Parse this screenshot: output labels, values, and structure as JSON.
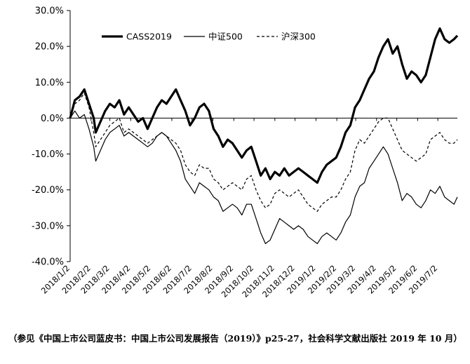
{
  "chart_data": {
    "type": "line",
    "ylim": [
      -0.4,
      0.3
    ],
    "yticks": [
      0.3,
      0.2,
      0.1,
      0.0,
      -0.1,
      -0.2,
      -0.3,
      -0.4
    ],
    "ytick_labels": [
      "30.0%",
      "20.0%",
      "10.0%",
      "0.0%",
      "-10.0%",
      "-20.0%",
      "-30.0%",
      "-40.0%"
    ],
    "x_start": "2018-01-02",
    "x_end": "2019-07-31",
    "xticks": [
      "2018-01-02",
      "2018-02-02",
      "2018-03-02",
      "2018-04-02",
      "2018-05-02",
      "2018-06-02",
      "2018-07-02",
      "2018-08-02",
      "2018-09-02",
      "2018-10-02",
      "2018-11-02",
      "2018-12-02",
      "2019-01-02",
      "2019-02-02",
      "2019-03-02",
      "2019-04-02",
      "2019-05-02",
      "2019-06-02",
      "2019-07-02"
    ],
    "xtick_labels": [
      "2018/1/2",
      "2018/2/2",
      "2018/3/2",
      "2018/4/2",
      "2018/5/2",
      "2018/6/2",
      "2018/7/2",
      "2018/8/2",
      "2018/9/2",
      "2018/10/2",
      "2018/11/2",
      "2018/12/2",
      "2019/1/2",
      "2019/2/2",
      "2019/3/2",
      "2019/4/2",
      "2019/5/2",
      "2019/6/2",
      "2019/7/2"
    ],
    "legend_position": "top",
    "grid": false,
    "series": [
      {
        "name": "CASS2019",
        "style": "thick-solid",
        "points": [
          [
            "2018-01-02",
            0.0
          ],
          [
            "2018-01-09",
            0.05
          ],
          [
            "2018-01-16",
            0.06
          ],
          [
            "2018-01-23",
            0.08
          ],
          [
            "2018-01-30",
            0.04
          ],
          [
            "2018-02-06",
            0.0
          ],
          [
            "2018-02-09",
            -0.04
          ],
          [
            "2018-02-16",
            -0.01
          ],
          [
            "2018-02-23",
            0.02
          ],
          [
            "2018-03-02",
            0.04
          ],
          [
            "2018-03-09",
            0.03
          ],
          [
            "2018-03-16",
            0.05
          ],
          [
            "2018-03-23",
            0.01
          ],
          [
            "2018-03-30",
            0.03
          ],
          [
            "2018-04-06",
            0.01
          ],
          [
            "2018-04-13",
            -0.01
          ],
          [
            "2018-04-20",
            0.0
          ],
          [
            "2018-04-27",
            -0.03
          ],
          [
            "2018-05-04",
            0.0
          ],
          [
            "2018-05-11",
            0.03
          ],
          [
            "2018-05-18",
            0.05
          ],
          [
            "2018-05-25",
            0.04
          ],
          [
            "2018-06-01",
            0.06
          ],
          [
            "2018-06-08",
            0.08
          ],
          [
            "2018-06-15",
            0.05
          ],
          [
            "2018-06-22",
            0.02
          ],
          [
            "2018-06-29",
            -0.02
          ],
          [
            "2018-07-06",
            0.0
          ],
          [
            "2018-07-13",
            0.03
          ],
          [
            "2018-07-20",
            0.04
          ],
          [
            "2018-07-27",
            0.02
          ],
          [
            "2018-08-03",
            -0.03
          ],
          [
            "2018-08-10",
            -0.05
          ],
          [
            "2018-08-17",
            -0.08
          ],
          [
            "2018-08-24",
            -0.06
          ],
          [
            "2018-08-31",
            -0.07
          ],
          [
            "2018-09-07",
            -0.09
          ],
          [
            "2018-09-14",
            -0.11
          ],
          [
            "2018-09-21",
            -0.09
          ],
          [
            "2018-09-28",
            -0.08
          ],
          [
            "2018-10-05",
            -0.12
          ],
          [
            "2018-10-12",
            -0.16
          ],
          [
            "2018-10-19",
            -0.14
          ],
          [
            "2018-10-26",
            -0.17
          ],
          [
            "2018-11-02",
            -0.15
          ],
          [
            "2018-11-09",
            -0.16
          ],
          [
            "2018-11-16",
            -0.14
          ],
          [
            "2018-11-23",
            -0.16
          ],
          [
            "2018-11-30",
            -0.15
          ],
          [
            "2018-12-07",
            -0.14
          ],
          [
            "2018-12-14",
            -0.15
          ],
          [
            "2018-12-21",
            -0.16
          ],
          [
            "2018-12-28",
            -0.17
          ],
          [
            "2019-01-04",
            -0.18
          ],
          [
            "2019-01-11",
            -0.15
          ],
          [
            "2019-01-18",
            -0.13
          ],
          [
            "2019-01-25",
            -0.12
          ],
          [
            "2019-02-01",
            -0.11
          ],
          [
            "2019-02-08",
            -0.08
          ],
          [
            "2019-02-15",
            -0.04
          ],
          [
            "2019-02-22",
            -0.02
          ],
          [
            "2019-03-01",
            0.03
          ],
          [
            "2019-03-08",
            0.05
          ],
          [
            "2019-03-15",
            0.08
          ],
          [
            "2019-03-22",
            0.11
          ],
          [
            "2019-03-29",
            0.13
          ],
          [
            "2019-04-05",
            0.17
          ],
          [
            "2019-04-12",
            0.2
          ],
          [
            "2019-04-19",
            0.22
          ],
          [
            "2019-04-26",
            0.18
          ],
          [
            "2019-05-03",
            0.2
          ],
          [
            "2019-05-10",
            0.15
          ],
          [
            "2019-05-17",
            0.11
          ],
          [
            "2019-05-24",
            0.13
          ],
          [
            "2019-05-31",
            0.12
          ],
          [
            "2019-06-07",
            0.1
          ],
          [
            "2019-06-14",
            0.12
          ],
          [
            "2019-06-21",
            0.17
          ],
          [
            "2019-06-28",
            0.22
          ],
          [
            "2019-07-05",
            0.25
          ],
          [
            "2019-07-12",
            0.22
          ],
          [
            "2019-07-19",
            0.21
          ],
          [
            "2019-07-26",
            0.22
          ],
          [
            "2019-07-31",
            0.23
          ]
        ]
      },
      {
        "name": "中证500",
        "style": "thin-solid",
        "points": [
          [
            "2018-01-02",
            0.0
          ],
          [
            "2018-01-09",
            0.02
          ],
          [
            "2018-01-16",
            0.0
          ],
          [
            "2018-01-23",
            0.01
          ],
          [
            "2018-01-30",
            -0.03
          ],
          [
            "2018-02-06",
            -0.08
          ],
          [
            "2018-02-09",
            -0.12
          ],
          [
            "2018-02-16",
            -0.09
          ],
          [
            "2018-02-23",
            -0.06
          ],
          [
            "2018-03-02",
            -0.04
          ],
          [
            "2018-03-09",
            -0.03
          ],
          [
            "2018-03-16",
            -0.02
          ],
          [
            "2018-03-23",
            -0.05
          ],
          [
            "2018-03-30",
            -0.04
          ],
          [
            "2018-04-06",
            -0.05
          ],
          [
            "2018-04-13",
            -0.06
          ],
          [
            "2018-04-20",
            -0.07
          ],
          [
            "2018-04-27",
            -0.08
          ],
          [
            "2018-05-04",
            -0.07
          ],
          [
            "2018-05-11",
            -0.05
          ],
          [
            "2018-05-18",
            -0.04
          ],
          [
            "2018-05-25",
            -0.05
          ],
          [
            "2018-06-01",
            -0.07
          ],
          [
            "2018-06-08",
            -0.09
          ],
          [
            "2018-06-15",
            -0.12
          ],
          [
            "2018-06-22",
            -0.17
          ],
          [
            "2018-06-29",
            -0.19
          ],
          [
            "2018-07-06",
            -0.21
          ],
          [
            "2018-07-13",
            -0.18
          ],
          [
            "2018-07-20",
            -0.19
          ],
          [
            "2018-07-27",
            -0.2
          ],
          [
            "2018-08-03",
            -0.22
          ],
          [
            "2018-08-10",
            -0.23
          ],
          [
            "2018-08-17",
            -0.26
          ],
          [
            "2018-08-24",
            -0.25
          ],
          [
            "2018-08-31",
            -0.24
          ],
          [
            "2018-09-07",
            -0.25
          ],
          [
            "2018-09-14",
            -0.27
          ],
          [
            "2018-09-21",
            -0.24
          ],
          [
            "2018-09-28",
            -0.24
          ],
          [
            "2018-10-05",
            -0.28
          ],
          [
            "2018-10-12",
            -0.32
          ],
          [
            "2018-10-19",
            -0.35
          ],
          [
            "2018-10-26",
            -0.34
          ],
          [
            "2018-11-02",
            -0.31
          ],
          [
            "2018-11-09",
            -0.28
          ],
          [
            "2018-11-16",
            -0.29
          ],
          [
            "2018-11-23",
            -0.3
          ],
          [
            "2018-11-30",
            -0.31
          ],
          [
            "2018-12-07",
            -0.3
          ],
          [
            "2018-12-14",
            -0.31
          ],
          [
            "2018-12-21",
            -0.33
          ],
          [
            "2018-12-28",
            -0.34
          ],
          [
            "2019-01-04",
            -0.35
          ],
          [
            "2019-01-11",
            -0.33
          ],
          [
            "2019-01-18",
            -0.32
          ],
          [
            "2019-01-25",
            -0.33
          ],
          [
            "2019-02-01",
            -0.34
          ],
          [
            "2019-02-08",
            -0.32
          ],
          [
            "2019-02-15",
            -0.29
          ],
          [
            "2019-02-22",
            -0.27
          ],
          [
            "2019-03-01",
            -0.22
          ],
          [
            "2019-03-08",
            -0.19
          ],
          [
            "2019-03-15",
            -0.18
          ],
          [
            "2019-03-22",
            -0.14
          ],
          [
            "2019-03-29",
            -0.12
          ],
          [
            "2019-04-05",
            -0.1
          ],
          [
            "2019-04-12",
            -0.08
          ],
          [
            "2019-04-19",
            -0.1
          ],
          [
            "2019-04-26",
            -0.14
          ],
          [
            "2019-05-03",
            -0.18
          ],
          [
            "2019-05-10",
            -0.23
          ],
          [
            "2019-05-17",
            -0.21
          ],
          [
            "2019-05-24",
            -0.22
          ],
          [
            "2019-05-31",
            -0.24
          ],
          [
            "2019-06-07",
            -0.25
          ],
          [
            "2019-06-14",
            -0.23
          ],
          [
            "2019-06-21",
            -0.2
          ],
          [
            "2019-06-28",
            -0.21
          ],
          [
            "2019-07-05",
            -0.19
          ],
          [
            "2019-07-12",
            -0.22
          ],
          [
            "2019-07-19",
            -0.23
          ],
          [
            "2019-07-26",
            -0.24
          ],
          [
            "2019-07-31",
            -0.22
          ]
        ]
      },
      {
        "name": "沪深300",
        "style": "dashed",
        "points": [
          [
            "2018-01-02",
            0.0
          ],
          [
            "2018-01-09",
            0.04
          ],
          [
            "2018-01-16",
            0.05
          ],
          [
            "2018-01-23",
            0.07
          ],
          [
            "2018-01-30",
            0.03
          ],
          [
            "2018-02-06",
            -0.04
          ],
          [
            "2018-02-09",
            -0.08
          ],
          [
            "2018-02-16",
            -0.06
          ],
          [
            "2018-02-23",
            -0.04
          ],
          [
            "2018-03-02",
            -0.02
          ],
          [
            "2018-03-09",
            -0.01
          ],
          [
            "2018-03-16",
            0.0
          ],
          [
            "2018-03-23",
            -0.04
          ],
          [
            "2018-03-30",
            -0.03
          ],
          [
            "2018-04-06",
            -0.04
          ],
          [
            "2018-04-13",
            -0.05
          ],
          [
            "2018-04-20",
            -0.06
          ],
          [
            "2018-04-27",
            -0.07
          ],
          [
            "2018-05-04",
            -0.06
          ],
          [
            "2018-05-11",
            -0.05
          ],
          [
            "2018-05-18",
            -0.04
          ],
          [
            "2018-05-25",
            -0.05
          ],
          [
            "2018-06-01",
            -0.06
          ],
          [
            "2018-06-08",
            -0.07
          ],
          [
            "2018-06-15",
            -0.09
          ],
          [
            "2018-06-22",
            -0.13
          ],
          [
            "2018-06-29",
            -0.15
          ],
          [
            "2018-07-06",
            -0.16
          ],
          [
            "2018-07-13",
            -0.13
          ],
          [
            "2018-07-20",
            -0.14
          ],
          [
            "2018-07-27",
            -0.14
          ],
          [
            "2018-08-03",
            -0.17
          ],
          [
            "2018-08-10",
            -0.18
          ],
          [
            "2018-08-17",
            -0.2
          ],
          [
            "2018-08-24",
            -0.19
          ],
          [
            "2018-08-31",
            -0.18
          ],
          [
            "2018-09-07",
            -0.19
          ],
          [
            "2018-09-14",
            -0.2
          ],
          [
            "2018-09-21",
            -0.17
          ],
          [
            "2018-09-28",
            -0.16
          ],
          [
            "2018-10-05",
            -0.2
          ],
          [
            "2018-10-12",
            -0.23
          ],
          [
            "2018-10-19",
            -0.25
          ],
          [
            "2018-10-26",
            -0.24
          ],
          [
            "2018-11-02",
            -0.21
          ],
          [
            "2018-11-09",
            -0.2
          ],
          [
            "2018-11-16",
            -0.21
          ],
          [
            "2018-11-23",
            -0.22
          ],
          [
            "2018-11-30",
            -0.21
          ],
          [
            "2018-12-07",
            -0.2
          ],
          [
            "2018-12-14",
            -0.22
          ],
          [
            "2018-12-21",
            -0.24
          ],
          [
            "2018-12-28",
            -0.25
          ],
          [
            "2019-01-04",
            -0.26
          ],
          [
            "2019-01-11",
            -0.24
          ],
          [
            "2019-01-18",
            -0.23
          ],
          [
            "2019-01-25",
            -0.22
          ],
          [
            "2019-02-01",
            -0.22
          ],
          [
            "2019-02-08",
            -0.2
          ],
          [
            "2019-02-15",
            -0.17
          ],
          [
            "2019-02-22",
            -0.15
          ],
          [
            "2019-03-01",
            -0.09
          ],
          [
            "2019-03-08",
            -0.06
          ],
          [
            "2019-03-15",
            -0.07
          ],
          [
            "2019-03-22",
            -0.05
          ],
          [
            "2019-03-29",
            -0.03
          ],
          [
            "2019-04-05",
            -0.01
          ],
          [
            "2019-04-12",
            0.0
          ],
          [
            "2019-04-19",
            0.0
          ],
          [
            "2019-04-26",
            -0.03
          ],
          [
            "2019-05-03",
            -0.06
          ],
          [
            "2019-05-10",
            -0.09
          ],
          [
            "2019-05-17",
            -0.1
          ],
          [
            "2019-05-24",
            -0.11
          ],
          [
            "2019-05-31",
            -0.12
          ],
          [
            "2019-06-07",
            -0.11
          ],
          [
            "2019-06-14",
            -0.1
          ],
          [
            "2019-06-21",
            -0.06
          ],
          [
            "2019-06-28",
            -0.05
          ],
          [
            "2019-07-05",
            -0.04
          ],
          [
            "2019-07-12",
            -0.06
          ],
          [
            "2019-07-19",
            -0.07
          ],
          [
            "2019-07-26",
            -0.07
          ],
          [
            "2019-07-31",
            -0.06
          ]
        ]
      }
    ]
  },
  "caption": {
    "text": "（参见《中国上市公司蓝皮书：中国上市公司发展报告（2019）》p25-27，社会科学文献出版社 2019 年 10 月）"
  }
}
